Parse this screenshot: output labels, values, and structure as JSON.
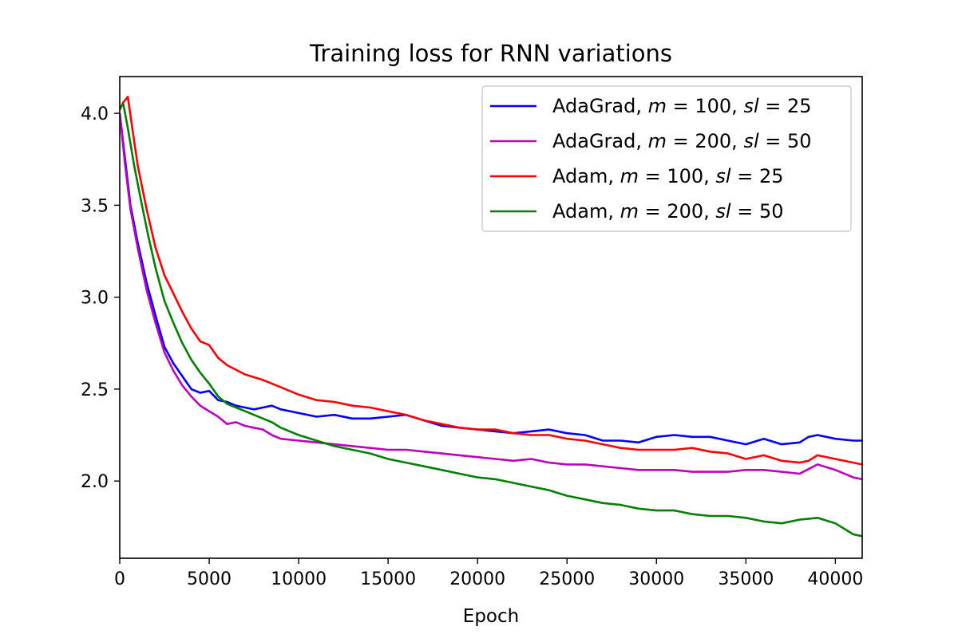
{
  "chart_data": {
    "type": "line",
    "title": "Training loss for RNN variations",
    "xlabel": "Epoch",
    "ylabel": "",
    "xlim": [
      0,
      41500
    ],
    "ylim": [
      1.58,
      4.2
    ],
    "grid": false,
    "legend_position": "top-right",
    "x_ticks": [
      0,
      5000,
      10000,
      15000,
      20000,
      25000,
      30000,
      35000,
      40000
    ],
    "y_ticks": [
      2.0,
      2.5,
      3.0,
      3.5,
      4.0
    ],
    "x_tick_labels": [
      "0",
      "5000",
      "10000",
      "15000",
      "20000",
      "25000",
      "30000",
      "35000",
      "40000"
    ],
    "y_tick_labels": [
      "2.0",
      "2.5",
      "3.0",
      "3.5",
      "4.0"
    ],
    "series": [
      {
        "name": "AdaGrad, m = 100, sl = 25",
        "color": "#0000ff",
        "x": [
          0,
          300,
          600,
          1000,
          1500,
          2000,
          2500,
          3000,
          3500,
          4000,
          4500,
          5000,
          5500,
          6000,
          6500,
          7000,
          7500,
          8000,
          8500,
          9000,
          10000,
          11000,
          12000,
          13000,
          14000,
          15000,
          16000,
          17000,
          18000,
          19000,
          20000,
          21000,
          22000,
          23000,
          24000,
          25000,
          26000,
          27000,
          28000,
          29000,
          30000,
          31000,
          32000,
          33000,
          34000,
          35000,
          36000,
          37000,
          38000,
          38500,
          39000,
          40000,
          41000,
          41500
        ],
        "y": [
          4.0,
          3.75,
          3.5,
          3.3,
          3.08,
          2.9,
          2.73,
          2.64,
          2.57,
          2.5,
          2.48,
          2.49,
          2.44,
          2.43,
          2.41,
          2.4,
          2.39,
          2.4,
          2.41,
          2.39,
          2.37,
          2.35,
          2.36,
          2.34,
          2.34,
          2.35,
          2.36,
          2.33,
          2.3,
          2.29,
          2.28,
          2.27,
          2.26,
          2.27,
          2.28,
          2.26,
          2.25,
          2.22,
          2.22,
          2.21,
          2.24,
          2.25,
          2.24,
          2.24,
          2.22,
          2.2,
          2.23,
          2.2,
          2.21,
          2.24,
          2.25,
          2.23,
          2.22,
          2.22
        ]
      },
      {
        "name": "AdaGrad, m = 200, sl = 50",
        "color": "#bf00bf",
        "x": [
          0,
          300,
          600,
          1000,
          1500,
          2000,
          2500,
          3000,
          3500,
          4000,
          4500,
          5000,
          5500,
          6000,
          6500,
          7000,
          7500,
          8000,
          8500,
          9000,
          10000,
          11000,
          12000,
          13000,
          14000,
          15000,
          16000,
          17000,
          18000,
          19000,
          20000,
          21000,
          22000,
          23000,
          24000,
          25000,
          26000,
          27000,
          28000,
          29000,
          30000,
          31000,
          32000,
          33000,
          34000,
          35000,
          36000,
          37000,
          38000,
          39000,
          40000,
          41000,
          41500
        ],
        "y": [
          4.0,
          3.72,
          3.48,
          3.27,
          3.04,
          2.86,
          2.7,
          2.6,
          2.52,
          2.46,
          2.41,
          2.38,
          2.35,
          2.31,
          2.32,
          2.3,
          2.29,
          2.28,
          2.25,
          2.23,
          2.22,
          2.21,
          2.2,
          2.19,
          2.18,
          2.17,
          2.17,
          2.16,
          2.15,
          2.14,
          2.13,
          2.12,
          2.11,
          2.12,
          2.1,
          2.09,
          2.09,
          2.08,
          2.07,
          2.06,
          2.06,
          2.06,
          2.05,
          2.05,
          2.05,
          2.06,
          2.06,
          2.05,
          2.04,
          2.09,
          2.06,
          2.02,
          2.01
        ]
      },
      {
        "name": "Adam, m = 100, sl = 25",
        "color": "#ff0000",
        "x": [
          0,
          200,
          450,
          700,
          1000,
          1500,
          2000,
          2500,
          3000,
          3500,
          4000,
          4500,
          5000,
          5500,
          6000,
          7000,
          8000,
          9000,
          10000,
          11000,
          12000,
          13000,
          14000,
          15000,
          16000,
          17000,
          18000,
          19000,
          20000,
          21000,
          22000,
          23000,
          24000,
          25000,
          26000,
          27000,
          28000,
          29000,
          30000,
          31000,
          32000,
          33000,
          34000,
          35000,
          36000,
          37000,
          38000,
          38500,
          39000,
          40000,
          41000,
          41500
        ],
        "y": [
          4.02,
          4.06,
          4.09,
          3.92,
          3.72,
          3.48,
          3.27,
          3.12,
          3.02,
          2.92,
          2.83,
          2.76,
          2.74,
          2.67,
          2.63,
          2.58,
          2.55,
          2.51,
          2.47,
          2.44,
          2.43,
          2.41,
          2.4,
          2.38,
          2.36,
          2.33,
          2.31,
          2.29,
          2.28,
          2.28,
          2.26,
          2.25,
          2.25,
          2.23,
          2.22,
          2.2,
          2.18,
          2.17,
          2.17,
          2.17,
          2.18,
          2.16,
          2.15,
          2.12,
          2.14,
          2.11,
          2.1,
          2.11,
          2.14,
          2.12,
          2.1,
          2.09
        ]
      },
      {
        "name": "Adam, m = 200, sl = 50",
        "color": "#008000",
        "x": [
          0,
          200,
          450,
          800,
          1200,
          1600,
          2000,
          2500,
          3000,
          3500,
          4000,
          4500,
          5000,
          5500,
          6000,
          6500,
          7000,
          7500,
          8000,
          8500,
          9000,
          10000,
          11000,
          12000,
          13000,
          14000,
          15000,
          16000,
          17000,
          18000,
          19000,
          20000,
          21000,
          22000,
          23000,
          24000,
          25000,
          26000,
          27000,
          28000,
          29000,
          30000,
          31000,
          32000,
          33000,
          34000,
          35000,
          36000,
          37000,
          38000,
          39000,
          40000,
          41000,
          41500
        ],
        "y": [
          4.03,
          4.05,
          3.92,
          3.72,
          3.52,
          3.33,
          3.16,
          2.98,
          2.86,
          2.75,
          2.66,
          2.59,
          2.53,
          2.46,
          2.42,
          2.4,
          2.38,
          2.36,
          2.34,
          2.32,
          2.29,
          2.25,
          2.22,
          2.19,
          2.17,
          2.15,
          2.12,
          2.1,
          2.08,
          2.06,
          2.04,
          2.02,
          2.01,
          1.99,
          1.97,
          1.95,
          1.92,
          1.9,
          1.88,
          1.87,
          1.85,
          1.84,
          1.84,
          1.82,
          1.81,
          1.81,
          1.8,
          1.78,
          1.77,
          1.79,
          1.8,
          1.77,
          1.71,
          1.7
        ]
      }
    ]
  }
}
